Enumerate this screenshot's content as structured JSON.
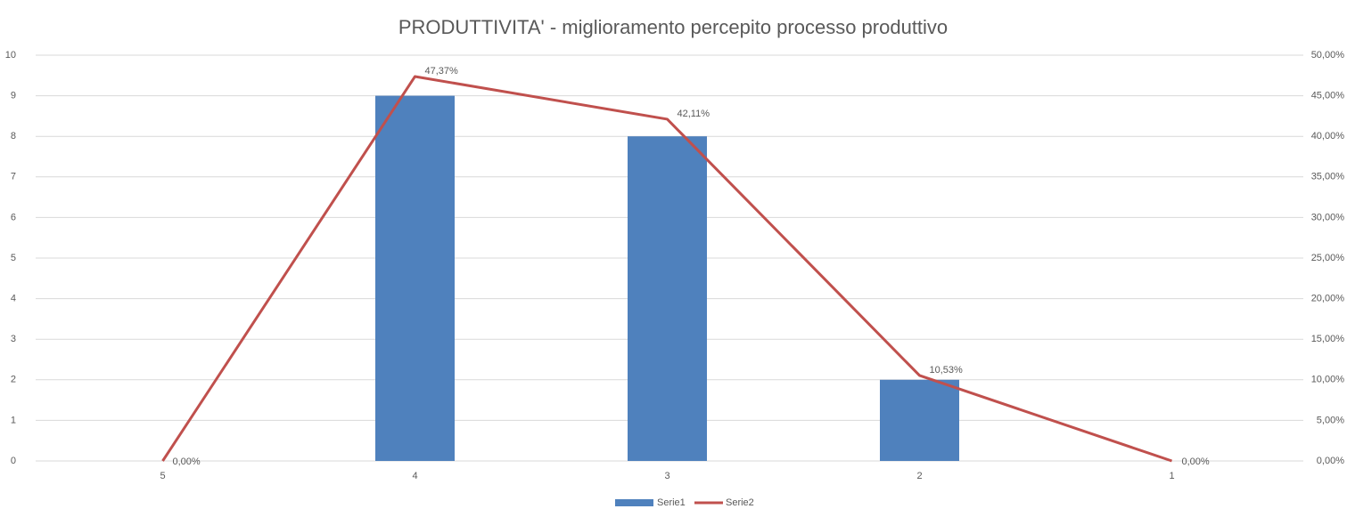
{
  "chart_data": {
    "type": "bar",
    "title": "PRODUTTIVITA' - miglioramento percepito processo produttivo",
    "categories": [
      "5",
      "4",
      "3",
      "2",
      "1"
    ],
    "series": [
      {
        "name": "Serie1",
        "type": "bar",
        "color": "#4f81bd",
        "values": [
          0,
          9,
          8,
          2,
          0
        ]
      },
      {
        "name": "Serie2",
        "type": "line",
        "axis": "y2",
        "color": "#c0504d",
        "values": [
          0,
          47.37,
          42.11,
          10.53,
          0
        ],
        "value_labels": [
          "0,00%",
          "47,37%",
          "42,11%",
          "10,53%",
          "0,00%"
        ]
      }
    ],
    "ylim": [
      0,
      10
    ],
    "yticks": [
      0,
      1,
      2,
      3,
      4,
      5,
      6,
      7,
      8,
      9,
      10
    ],
    "y2lim": [
      0,
      50
    ],
    "y2ticks": [
      {
        "value": 0,
        "label": "0,00%"
      },
      {
        "value": 5,
        "label": "5,00%"
      },
      {
        "value": 10,
        "label": "10,00%"
      },
      {
        "value": 15,
        "label": "15,00%"
      },
      {
        "value": 20,
        "label": "20,00%"
      },
      {
        "value": 25,
        "label": "25,00%"
      },
      {
        "value": 30,
        "label": "30,00%"
      },
      {
        "value": 35,
        "label": "35,00%"
      },
      {
        "value": 40,
        "label": "40,00%"
      },
      {
        "value": 45,
        "label": "45,00%"
      },
      {
        "value": 50,
        "label": "50,00%"
      }
    ],
    "grid": true,
    "legend": "bottom"
  }
}
